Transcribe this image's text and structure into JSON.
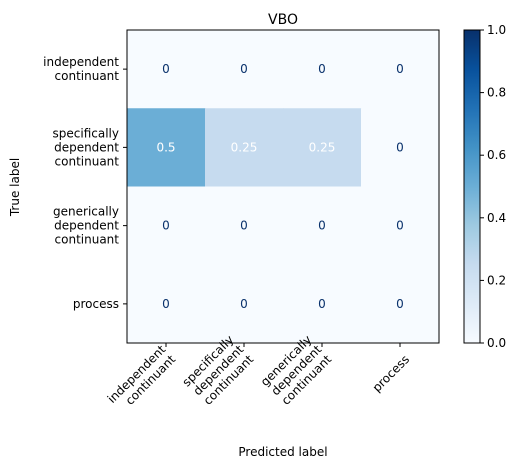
{
  "chart_data": {
    "type": "heatmap",
    "title": "VBO",
    "xlabel": "Predicted label",
    "ylabel": "True label",
    "x_categories": [
      [
        "independent",
        "continuant"
      ],
      [
        "specifically",
        "dependent",
        "continuant"
      ],
      [
        "generically",
        "dependent",
        "continuant"
      ],
      [
        "process"
      ]
    ],
    "y_categories": [
      [
        "independent",
        "continuant"
      ],
      [
        "specifically",
        "dependent",
        "continuant"
      ],
      [
        "generically",
        "dependent",
        "continuant"
      ],
      [
        "process"
      ]
    ],
    "values": [
      [
        0,
        0,
        0,
        0
      ],
      [
        0.5,
        0.25,
        0.25,
        0
      ],
      [
        0,
        0,
        0,
        0
      ],
      [
        0,
        0,
        0,
        0
      ]
    ],
    "value_labels": [
      [
        "0",
        "0",
        "0",
        "0"
      ],
      [
        "0.5",
        "0.25",
        "0.25",
        "0"
      ],
      [
        "0",
        "0",
        "0",
        "0"
      ],
      [
        "0",
        "0",
        "0",
        "0"
      ]
    ],
    "colormap": "Blues",
    "vmin": 0,
    "vmax": 1,
    "colorbar_ticks": [
      "0.0",
      "0.2",
      "0.4",
      "0.6",
      "0.8",
      "1.0"
    ]
  }
}
